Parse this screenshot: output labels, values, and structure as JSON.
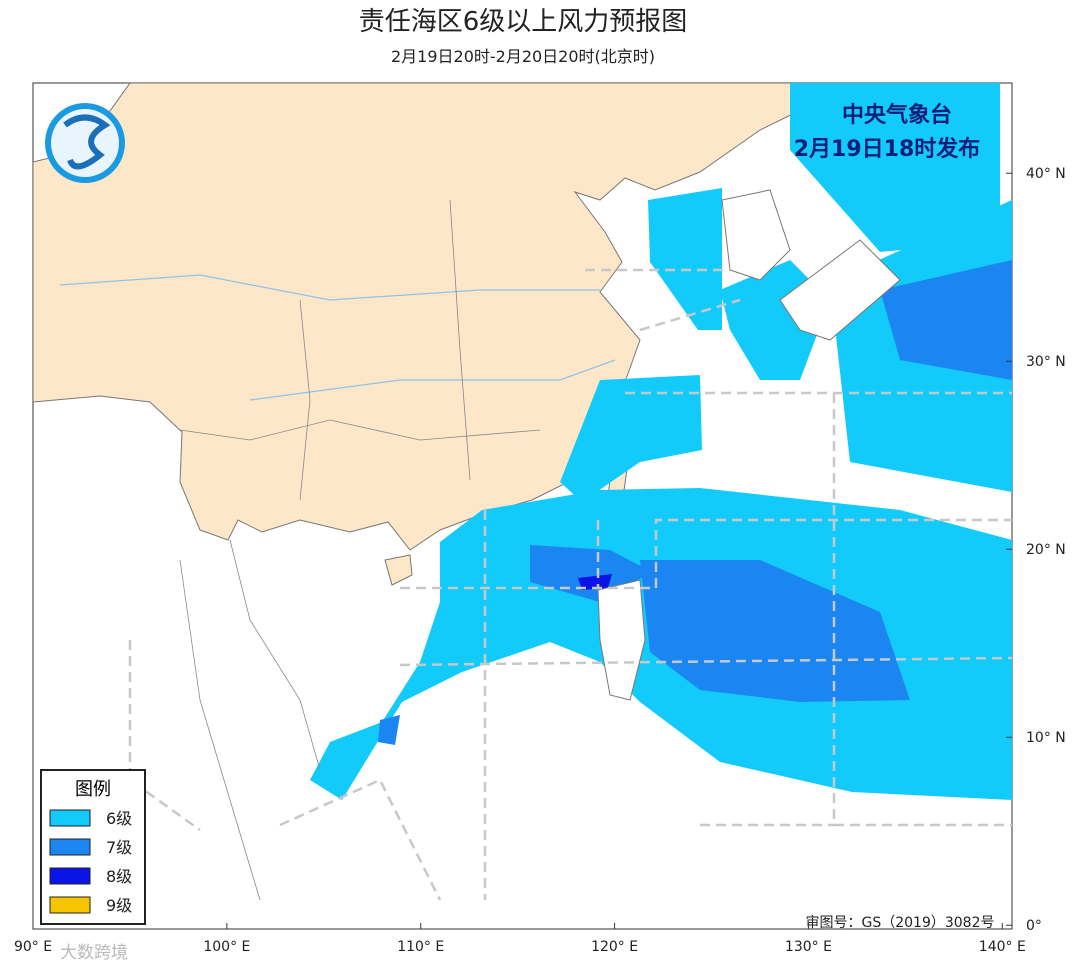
{
  "header": {
    "title": "责任海区6级以上风力预报图",
    "subtitle": "2月19日20时-2月20日20时(北京时)"
  },
  "issuer": {
    "name": "中央气象台",
    "time": "2月19日18时发布"
  },
  "map": {
    "lon_range": [
      90,
      140.5
    ],
    "lat_range": [
      -0.2,
      44.8
    ],
    "lon_ticks": [
      {
        "value": 90,
        "label": "90° E"
      },
      {
        "value": 100,
        "label": "100° E"
      },
      {
        "value": 110,
        "label": "110° E"
      },
      {
        "value": 120,
        "label": "120° E"
      },
      {
        "value": 130,
        "label": "130° E"
      },
      {
        "value": 140,
        "label": "140° E"
      }
    ],
    "lat_ticks": [
      {
        "value": 0,
        "label": "0°"
      },
      {
        "value": 10,
        "label": "10° N"
      },
      {
        "value": 20,
        "label": "20° N"
      },
      {
        "value": 30,
        "label": "30° N"
      },
      {
        "value": 40,
        "label": "40° N"
      }
    ]
  },
  "legend": {
    "title": "图例",
    "items": [
      {
        "label": "6级",
        "color": "#12cbfb"
      },
      {
        "label": "7级",
        "color": "#1b86f2"
      },
      {
        "label": "8级",
        "color": "#0a14e6"
      },
      {
        "label": "9级",
        "color": "#f7c500"
      }
    ]
  },
  "approval": "审图号：GS（2019）3082号",
  "watermark": "大数跨境"
}
